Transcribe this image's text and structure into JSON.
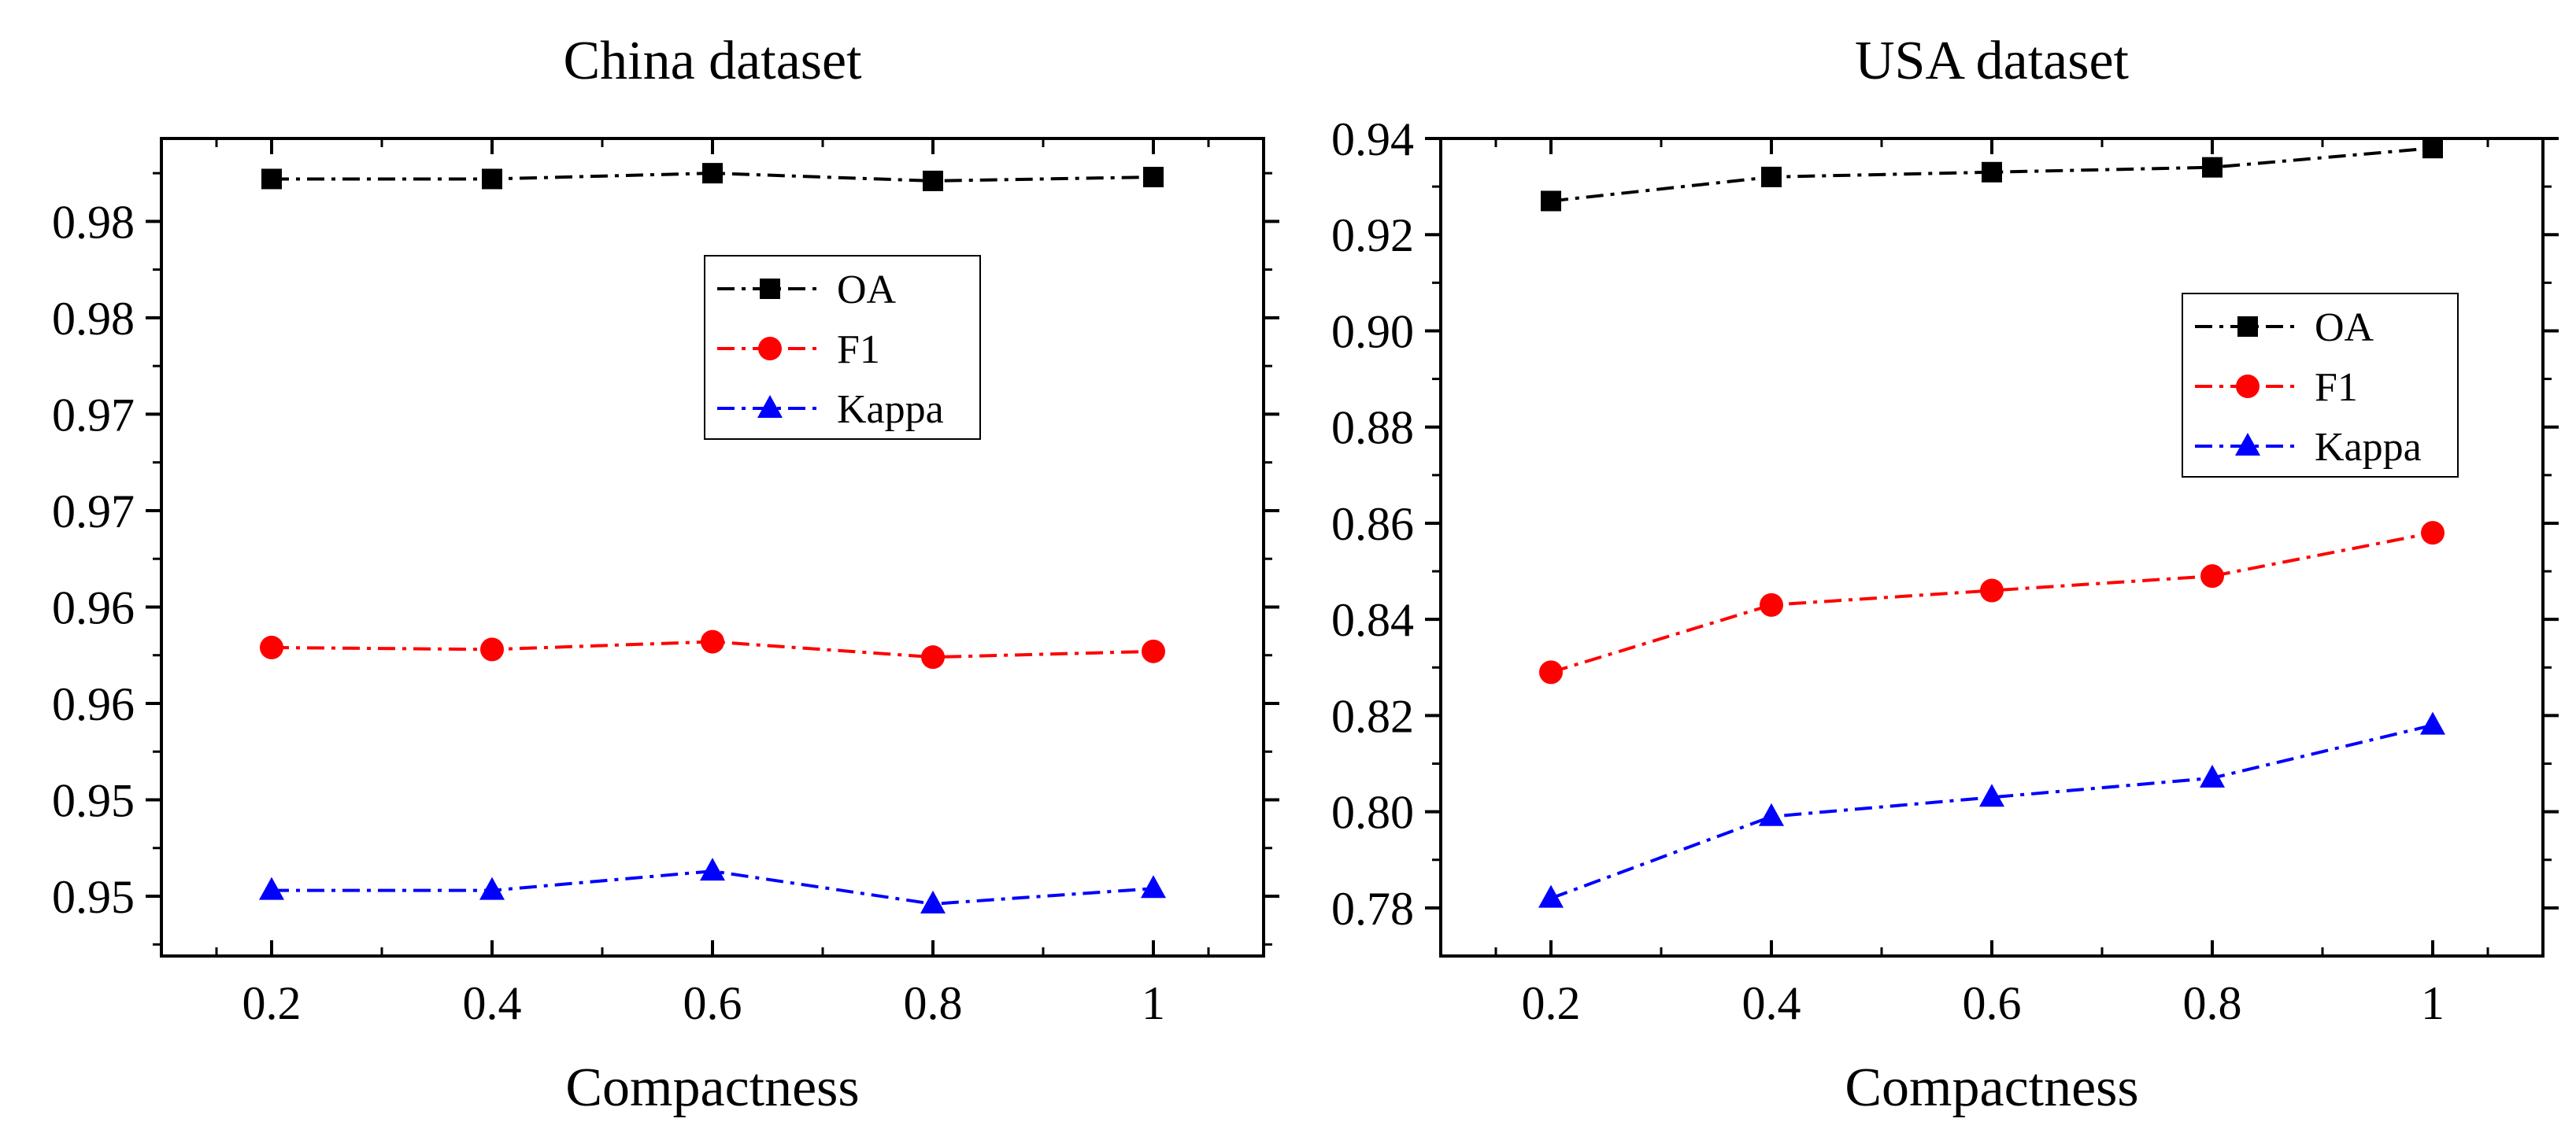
{
  "chart_data": [
    {
      "type": "line",
      "title": "China dataset",
      "xlabel": "Compactness",
      "ylabel": "",
      "x": [
        0.2,
        0.4,
        0.6,
        0.8,
        1
      ],
      "x_tick_labels": [
        "0.2",
        "0.4",
        "0.6",
        "0.8",
        "1"
      ],
      "xlim": [
        0.1,
        1.1
      ],
      "ylim": [
        0.9434,
        0.9858
      ],
      "y_ticks": [
        0.9465,
        0.9515,
        0.9565,
        0.9615,
        0.9665,
        0.9715,
        0.9765,
        0.9815
      ],
      "y_tick_labels": [
        "0.95",
        "0.95",
        "0.96",
        "0.96",
        "0.97",
        "0.97",
        "0.98",
        "0.98"
      ],
      "legend_position": "upper-center",
      "grid": false,
      "series": [
        {
          "name": "OA",
          "values": [
            0.9837,
            0.9837,
            0.984,
            0.9836,
            0.9838
          ],
          "color": "#000000",
          "marker": "square"
        },
        {
          "name": "F1",
          "values": [
            0.9594,
            0.9593,
            0.9597,
            0.9589,
            0.9592
          ],
          "color": "#ff0000",
          "marker": "circle"
        },
        {
          "name": "Kappa",
          "values": [
            0.9468,
            0.9468,
            0.9478,
            0.9461,
            0.9469
          ],
          "color": "#0000ff",
          "marker": "triangle"
        }
      ]
    },
    {
      "type": "line",
      "title": "USA dataset",
      "xlabel": "Compactness",
      "ylabel": "",
      "x": [
        0.2,
        0.4,
        0.6,
        0.8,
        1
      ],
      "x_tick_labels": [
        "0.2",
        "0.4",
        "0.6",
        "0.8",
        "1"
      ],
      "xlim": [
        0.1,
        1.1
      ],
      "ylim": [
        0.77,
        0.94
      ],
      "y_ticks": [
        0.78,
        0.8,
        0.82,
        0.84,
        0.86,
        0.88,
        0.9,
        0.92,
        0.94
      ],
      "y_tick_labels": [
        "0.78",
        "0.80",
        "0.82",
        "0.84",
        "0.86",
        "0.88",
        "0.90",
        "0.92",
        "0.94"
      ],
      "legend_position": "right",
      "grid": false,
      "series": [
        {
          "name": "OA",
          "values": [
            0.927,
            0.932,
            0.933,
            0.934,
            0.938
          ],
          "color": "#000000",
          "marker": "square"
        },
        {
          "name": "F1",
          "values": [
            0.829,
            0.843,
            0.846,
            0.849,
            0.858
          ],
          "color": "#ff0000",
          "marker": "circle"
        },
        {
          "name": "Kappa",
          "values": [
            0.782,
            0.799,
            0.803,
            0.807,
            0.818
          ],
          "color": "#0000ff",
          "marker": "triangle"
        }
      ]
    }
  ]
}
